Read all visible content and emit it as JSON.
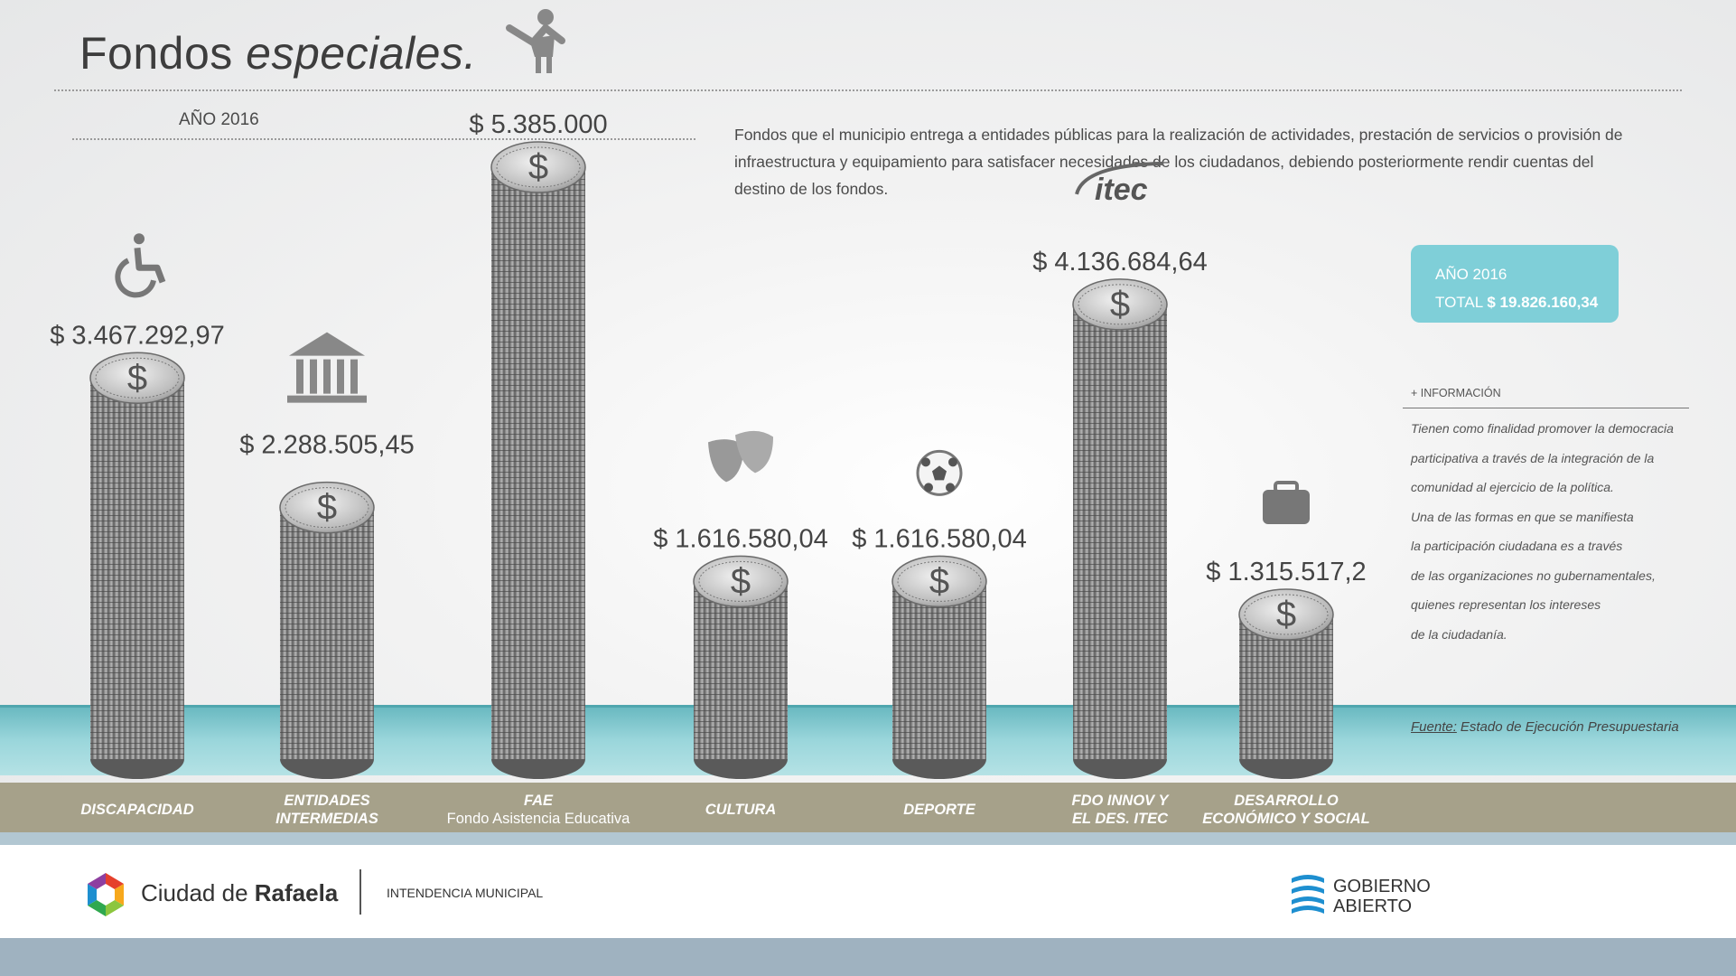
{
  "title": {
    "part1": "Fondos ",
    "part2": "especiales."
  },
  "year_label": "AÑO 2016",
  "description": "Fondos que el municipio entrega a entidades públicas para la realización de actividades, prestación de servicios o provisión de infraestructura y equipamiento para satisfacer necesidades de los ciudadanos, debiendo posteriormente rendir cuentas del destino de los fondos.",
  "total_box": {
    "year": "AÑO 2016",
    "total_label": "TOTAL",
    "total_value": "$ 19.826.160,34",
    "color": "#7fcfd8"
  },
  "info": {
    "title": "+ INFORMACIÓN",
    "lines": [
      "Tienen como finalidad promover la democracia",
      "participativa a través de la integración de la",
      "comunidad al ejercicio de la política.",
      "Una de las formas en que se manifiesta",
      "la participación ciudadana es a través",
      "de las organizaciones no gubernamentales,",
      "quienes representan los intereses",
      "de la ciudadanía."
    ]
  },
  "source": {
    "label": "Fuente:",
    "text": "Estado de Ejecución Presupuestaria"
  },
  "chart_data": {
    "type": "bar",
    "categories": [
      "DISCAPACIDAD",
      "ENTIDADES INTERMEDIAS",
      "FAE",
      "CULTURA",
      "DEPORTE",
      "FDO INNOV Y EL DES. ITEC",
      "DESARROLLO ECONÓMICO Y SOCIAL"
    ],
    "values": [
      3467292.97,
      2288505.45,
      5385000,
      1616580.04,
      1616580.04,
      4136684.64,
      1315517.2
    ],
    "value_labels": [
      "$ 3.467.292,97",
      "$ 2.288.505,45",
      "$ 5.385.000",
      "$ 1.616.580,04",
      "$ 1.616.580,04",
      "$ 4.136.684,64",
      "$ 1.315.517,2"
    ],
    "icons": [
      "wheelchair-icon",
      "bank-building-icon",
      "child-icon",
      "theater-masks-icon",
      "soccer-ball-icon",
      "itec-logo-icon",
      "briefcase-icon"
    ],
    "itec_logo_text": "itec",
    "coin_symbol": "$",
    "coin_color": "#8a8a8a",
    "colors": {
      "water": "#7fc8cf",
      "band": "#a6a18a"
    }
  },
  "category_labels": [
    {
      "line1": "DISCAPACIDAD",
      "line2": ""
    },
    {
      "line1": "ENTIDADES",
      "line2": "INTERMEDIAS"
    },
    {
      "line1": "FAE",
      "line2": "Fondo Asistencia Educativa"
    },
    {
      "line1": "CULTURA",
      "line2": ""
    },
    {
      "line1": "DEPORTE",
      "line2": ""
    },
    {
      "line1": "FDO INNOV Y",
      "line2": "EL DES. ITEC"
    },
    {
      "line1": "DESARROLLO",
      "line2": "ECONÓMICO Y SOCIAL"
    }
  ],
  "footer": {
    "city_part1": "Ciudad de ",
    "city_part2": "Rafaela",
    "intendencia": "INTENDENCIA MUNICIPAL",
    "gob_line1": "GOBIERNO",
    "gob_line2": "ABIERTO"
  }
}
